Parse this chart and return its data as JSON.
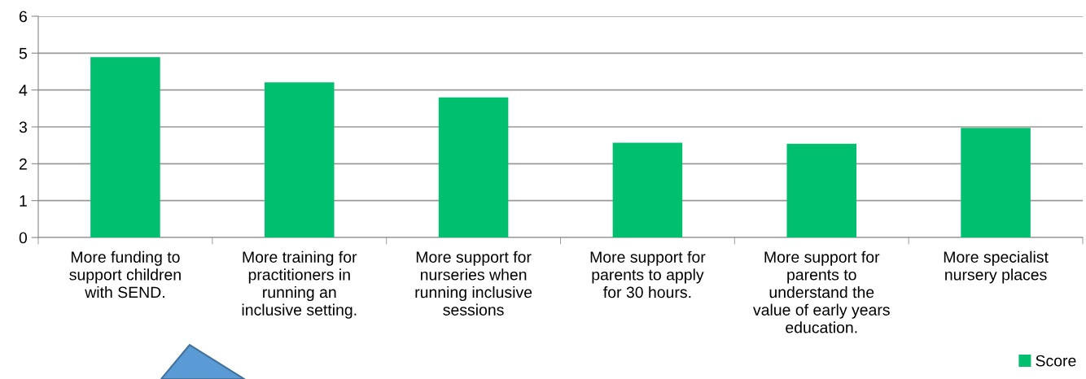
{
  "chart_data": {
    "type": "bar",
    "categories": [
      "More funding to\nsupport children\nwith SEND.",
      "More training for\npractitioners in\nrunning an\ninclusive setting.",
      "More support for\nnurseries when\nrunning inclusive\nsessions",
      "More support for\nparents to apply\nfor 30 hours.",
      "More support for\nparents to\nunderstand the\nvalue of early years\neducation.",
      "More specialist\nnursery places"
    ],
    "series": [
      {
        "name": "Score",
        "color": "#00bf6f",
        "values": [
          4.89,
          4.21,
          3.8,
          2.57,
          2.54,
          2.97
        ]
      }
    ],
    "ylim": [
      0,
      6
    ],
    "yticks": [
      0,
      1,
      2,
      3,
      4,
      5,
      6
    ],
    "grid": "y",
    "legend": "bottom right"
  }
}
